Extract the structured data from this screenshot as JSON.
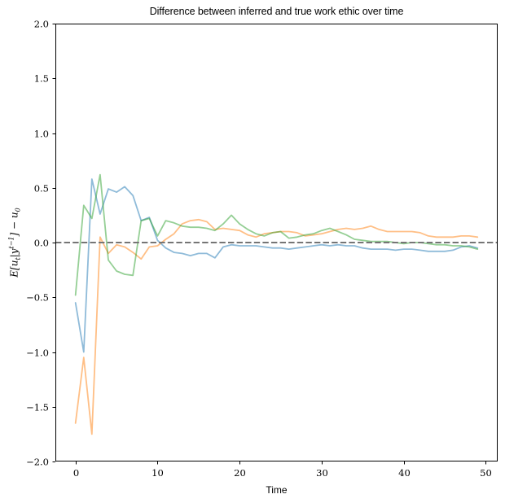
{
  "chart_data": {
    "type": "line",
    "title": "Difference between inferred and true work ethic over time",
    "xlabel": "Time",
    "ylabel": "E[u_t|y^(t-1)] − u_0",
    "ylabel_parts": {
      "pre": "E[u",
      "sub1": "t",
      "mid": "|y",
      "sup1": "t−1",
      "post": "] − u",
      "sub2": "0"
    },
    "xlim": [
      -2.45,
      51.45
    ],
    "ylim": [
      -2.0,
      2.0
    ],
    "grid": false,
    "legend": "none",
    "x": {
      "start": 0,
      "step": 1,
      "count": 50
    },
    "xticks": [
      {
        "label": "0",
        "value": 0
      },
      {
        "label": "10",
        "value": 10
      },
      {
        "label": "20",
        "value": 20
      },
      {
        "label": "30",
        "value": 30
      },
      {
        "label": "40",
        "value": 40
      },
      {
        "label": "50",
        "value": 50
      }
    ],
    "yticks": [
      {
        "label": "−2.0",
        "value": -2.0
      },
      {
        "label": "−1.5",
        "value": -1.5
      },
      {
        "label": "−1.0",
        "value": -1.0
      },
      {
        "label": "−0.5",
        "value": -0.5
      },
      {
        "label": "0.0",
        "value": 0.0
      },
      {
        "label": "0.5",
        "value": 0.5
      },
      {
        "label": "1.0",
        "value": 1.0
      },
      {
        "label": "1.5",
        "value": 1.5
      },
      {
        "label": "2.0",
        "value": 2.0
      }
    ],
    "zero_line": {
      "value": 0.0,
      "color": "#757575",
      "style": "dashed",
      "width": 2
    },
    "line_opacity": 0.5,
    "line_width": 1.8,
    "series": [
      {
        "name": "blue-line",
        "color": "#1f77b4",
        "values": [
          -0.55,
          -1.0,
          0.58,
          0.26,
          0.49,
          0.46,
          0.51,
          0.43,
          0.2,
          0.23,
          0.02,
          -0.05,
          -0.09,
          -0.1,
          -0.12,
          -0.1,
          -0.1,
          -0.14,
          -0.04,
          -0.02,
          -0.03,
          -0.03,
          -0.03,
          -0.04,
          -0.05,
          -0.05,
          -0.06,
          -0.05,
          -0.04,
          -0.03,
          -0.02,
          -0.03,
          -0.02,
          -0.03,
          -0.03,
          -0.05,
          -0.06,
          -0.06,
          -0.06,
          -0.07,
          -0.06,
          -0.06,
          -0.07,
          -0.08,
          -0.08,
          -0.08,
          -0.07,
          -0.04,
          -0.03,
          -0.05
        ]
      },
      {
        "name": "orange-line",
        "color": "#ff7f0e",
        "values": [
          -1.65,
          -1.05,
          -1.75,
          0.05,
          -0.1,
          -0.02,
          -0.04,
          -0.09,
          -0.15,
          -0.04,
          -0.03,
          0.03,
          0.08,
          0.17,
          0.2,
          0.21,
          0.19,
          0.12,
          0.13,
          0.12,
          0.11,
          0.07,
          0.05,
          0.08,
          0.09,
          0.1,
          0.1,
          0.09,
          0.06,
          0.07,
          0.08,
          0.1,
          0.12,
          0.13,
          0.12,
          0.13,
          0.15,
          0.12,
          0.1,
          0.1,
          0.1,
          0.1,
          0.09,
          0.06,
          0.05,
          0.05,
          0.05,
          0.06,
          0.06,
          0.05
        ]
      },
      {
        "name": "green-line",
        "color": "#2ca02c",
        "values": [
          -0.48,
          0.34,
          0.22,
          0.62,
          -0.16,
          -0.26,
          -0.29,
          -0.3,
          0.2,
          0.22,
          0.06,
          0.2,
          0.18,
          0.15,
          0.14,
          0.14,
          0.13,
          0.11,
          0.17,
          0.25,
          0.17,
          0.12,
          0.08,
          0.06,
          0.09,
          0.1,
          0.04,
          0.05,
          0.07,
          0.08,
          0.11,
          0.13,
          0.1,
          0.07,
          0.03,
          0.02,
          0.01,
          0.01,
          0.01,
          0.0,
          -0.01,
          0.0,
          0.0,
          -0.01,
          -0.02,
          -0.02,
          -0.03,
          -0.03,
          -0.04,
          -0.06
        ]
      }
    ]
  }
}
